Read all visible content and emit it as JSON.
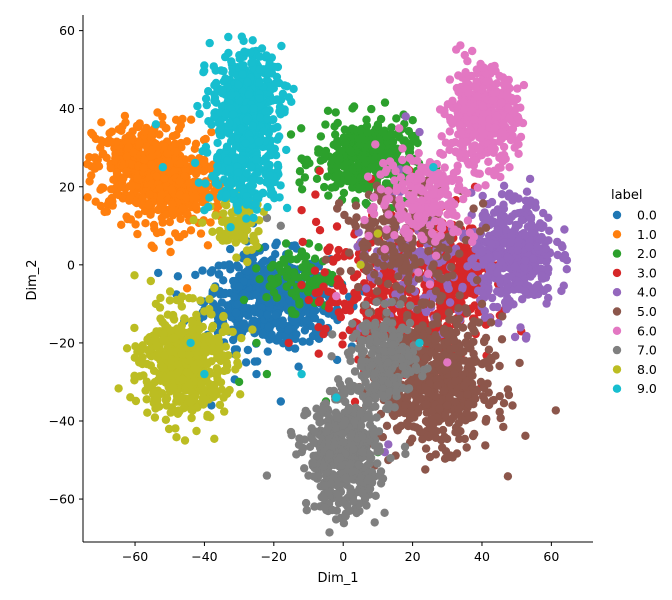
{
  "chart_data": {
    "type": "scatter",
    "title": "",
    "xlabel": "Dim_1",
    "ylabel": "Dim_2",
    "xlim": [
      -75,
      72
    ],
    "ylim": [
      -71,
      64
    ],
    "xticks": [
      -60,
      -40,
      -20,
      0,
      20,
      40,
      60
    ],
    "yticks": [
      -60,
      -40,
      -20,
      0,
      20,
      40,
      60
    ],
    "grid": false,
    "legend": {
      "title": "label",
      "placement": "outside-right"
    },
    "series": [
      {
        "name": "0.0",
        "color": "#1f77b4",
        "clusters": [
          {
            "cx": -22,
            "cy": -9,
            "sx": 9,
            "sy": 6,
            "n": 480
          },
          {
            "cx": -10,
            "cy": -10,
            "sx": 5,
            "sy": 4,
            "n": 90
          }
        ],
        "points": [
          [
            -28,
            -25
          ],
          [
            -25,
            -28
          ],
          [
            -18,
            -35
          ],
          [
            -38,
            -36
          ],
          [
            -8,
            -8
          ],
          [
            -14,
            -2
          ]
        ]
      },
      {
        "name": "1.0",
        "color": "#ff7f0e",
        "clusters": [
          {
            "cx": -58,
            "cy": 25,
            "sx": 7,
            "sy": 6,
            "n": 430
          },
          {
            "cx": -47,
            "cy": 19,
            "sx": 6,
            "sy": 5,
            "n": 230
          }
        ],
        "points": [
          [
            -70,
            30
          ],
          [
            -38,
            34
          ],
          [
            -41,
            8
          ],
          [
            -45,
            -6
          ],
          [
            -39,
            5
          ],
          [
            -36,
            15
          ]
        ]
      },
      {
        "name": "2.0",
        "color": "#2ca02c",
        "clusters": [
          {
            "cx": 6,
            "cy": 27,
            "sx": 7,
            "sy": 5,
            "n": 380
          },
          {
            "cx": -12,
            "cy": -3,
            "sx": 5,
            "sy": 4,
            "n": 90
          }
        ],
        "points": [
          [
            -25,
            -20
          ],
          [
            -30,
            -30
          ],
          [
            -22,
            -28
          ],
          [
            10,
            -48
          ],
          [
            -5,
            -35
          ],
          [
            -20,
            -5
          ]
        ]
      },
      {
        "name": "3.0",
        "color": "#d62728",
        "clusters": [
          {
            "cx": 31,
            "cy": 0,
            "sx": 5,
            "sy": 6,
            "n": 260
          },
          {
            "cx": 15,
            "cy": -8,
            "sx": 11,
            "sy": 9,
            "n": 430
          }
        ],
        "points": [
          [
            -12,
            14
          ],
          [
            -8,
            18
          ],
          [
            8,
            22
          ],
          [
            38,
            20
          ],
          [
            22,
            0
          ]
        ]
      },
      {
        "name": "4.0",
        "color": "#9467bd",
        "clusters": [
          {
            "cx": 49,
            "cy": 3,
            "sx": 6,
            "sy": 7,
            "n": 430
          },
          {
            "cx": 20,
            "cy": -2,
            "sx": 9,
            "sy": 8,
            "n": 120
          }
        ],
        "points": [
          [
            63,
            5
          ],
          [
            22,
            34
          ],
          [
            18,
            38
          ],
          [
            13,
            -46
          ],
          [
            12,
            -48
          ],
          [
            30,
            18
          ]
        ]
      },
      {
        "name": "5.0",
        "color": "#8c564b",
        "clusters": [
          {
            "cx": 27,
            "cy": -30,
            "sx": 8,
            "sy": 8,
            "n": 620
          },
          {
            "cx": 18,
            "cy": 6,
            "sx": 9,
            "sy": 7,
            "n": 210
          }
        ],
        "points": [
          [
            8,
            -12
          ],
          [
            5,
            -20
          ],
          [
            40,
            -10
          ],
          [
            13,
            -50
          ]
        ]
      },
      {
        "name": "6.0",
        "color": "#e377c2",
        "clusters": [
          {
            "cx": 40,
            "cy": 38,
            "sx": 5,
            "sy": 6,
            "n": 480
          },
          {
            "cx": 24,
            "cy": 18,
            "sx": 7,
            "sy": 6,
            "n": 220
          }
        ],
        "points": [
          [
            12,
            4
          ],
          [
            18,
            8
          ],
          [
            -2,
            -8
          ],
          [
            30,
            -25
          ],
          [
            8,
            14
          ],
          [
            25,
            -5
          ]
        ]
      },
      {
        "name": "7.0",
        "color": "#7f7f7f",
        "clusters": [
          {
            "cx": 0,
            "cy": -49,
            "sx": 5,
            "sy": 7,
            "n": 560
          },
          {
            "cx": 12,
            "cy": -25,
            "sx": 5,
            "sy": 6,
            "n": 230
          }
        ],
        "points": [
          [
            -22,
            -54
          ],
          [
            -10,
            -54
          ],
          [
            5,
            -38
          ],
          [
            12,
            -10
          ],
          [
            -22,
            12
          ],
          [
            -18,
            10
          ]
        ]
      },
      {
        "name": "8.0",
        "color": "#bcbd22",
        "clusters": [
          {
            "cx": -46,
            "cy": -25,
            "sx": 6,
            "sy": 7,
            "n": 520
          },
          {
            "cx": -31,
            "cy": 10,
            "sx": 4,
            "sy": 4,
            "n": 80
          }
        ],
        "points": [
          [
            -54,
            -10
          ],
          [
            -48,
            -9
          ],
          [
            -37,
            -32
          ],
          [
            -28,
            15
          ],
          [
            5,
            0
          ],
          [
            10,
            8
          ]
        ]
      },
      {
        "name": "9.0",
        "color": "#17becf",
        "clusters": [
          {
            "cx": -28,
            "cy": 43,
            "sx": 5,
            "sy": 6,
            "n": 420
          },
          {
            "cx": -28,
            "cy": 25,
            "sx": 5,
            "sy": 6,
            "n": 260
          }
        ],
        "points": [
          [
            -54,
            36
          ],
          [
            -52,
            25
          ],
          [
            -40,
            14
          ],
          [
            -44,
            -20
          ],
          [
            -40,
            -28
          ],
          [
            -12,
            -28
          ],
          [
            22,
            -20
          ],
          [
            -2,
            -34
          ],
          [
            26,
            25
          ]
        ]
      }
    ]
  }
}
